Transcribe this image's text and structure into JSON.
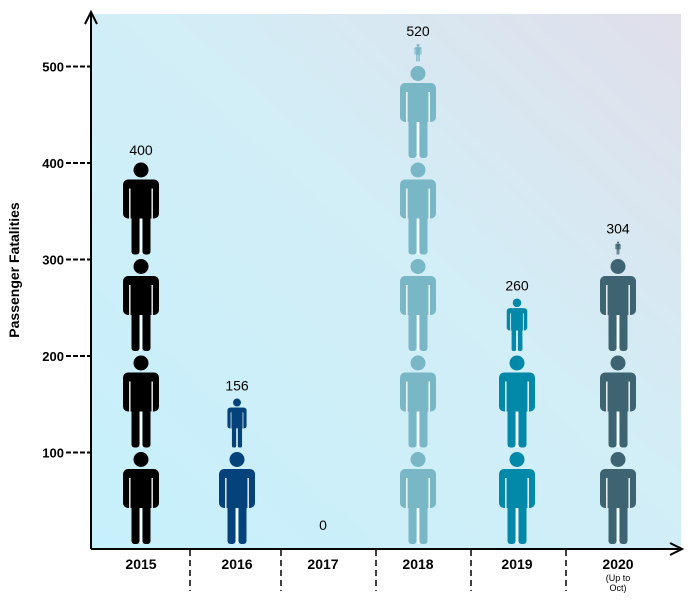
{
  "chart_data": {
    "type": "bar",
    "ylabel": "Passenger Fatalities",
    "xlabel": "",
    "ylim": [
      0,
      550
    ],
    "yticks": [
      100,
      200,
      300,
      400,
      500
    ],
    "unit_per_icon": 100,
    "categories": [
      "2015",
      "2016",
      "2017",
      "2018",
      "2019",
      "2020"
    ],
    "category_notes": [
      "",
      "",
      "",
      "",
      "",
      "(Up to Oct)"
    ],
    "values": [
      400,
      156,
      0,
      520,
      260,
      304
    ],
    "data_labels": [
      "400",
      "156",
      "0",
      "520",
      "260",
      "304"
    ],
    "colors": [
      "#000000",
      "#04427c",
      "#04427c",
      "#79b6c6",
      "#0288a8",
      "#3d6470"
    ],
    "grid": false,
    "background_gradient": [
      "#c6f0fb",
      "#e0dfea"
    ]
  }
}
